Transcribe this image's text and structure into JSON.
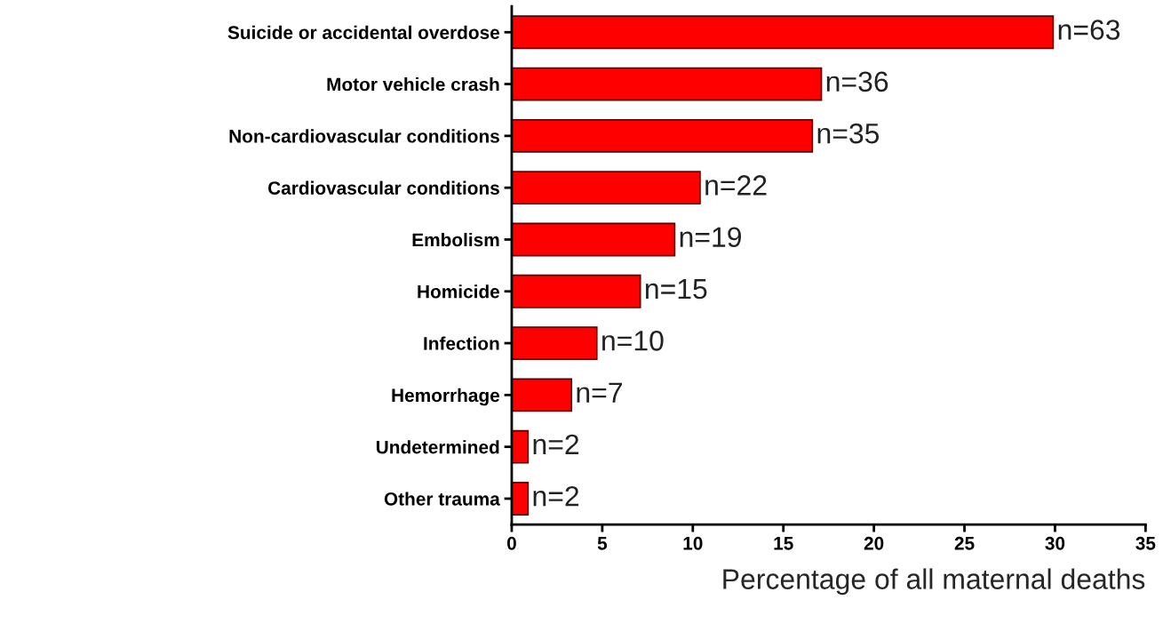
{
  "chart_data": {
    "type": "bar",
    "orientation": "horizontal",
    "categories": [
      "Suicide or accidental overdose",
      "Motor vehicle crash",
      "Non-cardiovascular conditions",
      "Cardiovascular conditions",
      "Embolism",
      "Homicide",
      "Infection",
      "Hemorrhage",
      "Undetermined",
      "Other trauma"
    ],
    "values": [
      29.9,
      17.1,
      16.6,
      10.4,
      9.0,
      7.1,
      4.7,
      3.3,
      0.9,
      0.9
    ],
    "annotations": [
      {
        "text": "n=63",
        "x": 29.9,
        "y": "Suicide or accidental overdose"
      },
      {
        "text": "n=36",
        "x": 17.1,
        "y": "Motor vehicle crash"
      },
      {
        "text": "n=35",
        "x": 16.6,
        "y": "Non-cardiovascular conditions"
      },
      {
        "text": "n=22",
        "x": 10.4,
        "y": "Cardiovascular conditions"
      },
      {
        "text": "n=19",
        "x": 9.0,
        "y": "Embolism"
      },
      {
        "text": "n=15",
        "x": 7.1,
        "y": "Homicide"
      },
      {
        "text": "n=10",
        "x": 4.7,
        "y": "Infection"
      },
      {
        "text": "n=7",
        "x": 3.3,
        "y": "Hemorrhage"
      },
      {
        "text": "n=2",
        "x": 0.9,
        "y": "Undetermined"
      },
      {
        "text": "n=2",
        "x": 0.9,
        "y": "Other trauma"
      }
    ],
    "color": "#ff0000",
    "xlim": [
      0,
      35
    ],
    "xticks": [
      0,
      5,
      10,
      15,
      20,
      25,
      30,
      35
    ],
    "xlabel": "Percentage of all maternal deaths",
    "grid": false,
    "legend": false
  }
}
